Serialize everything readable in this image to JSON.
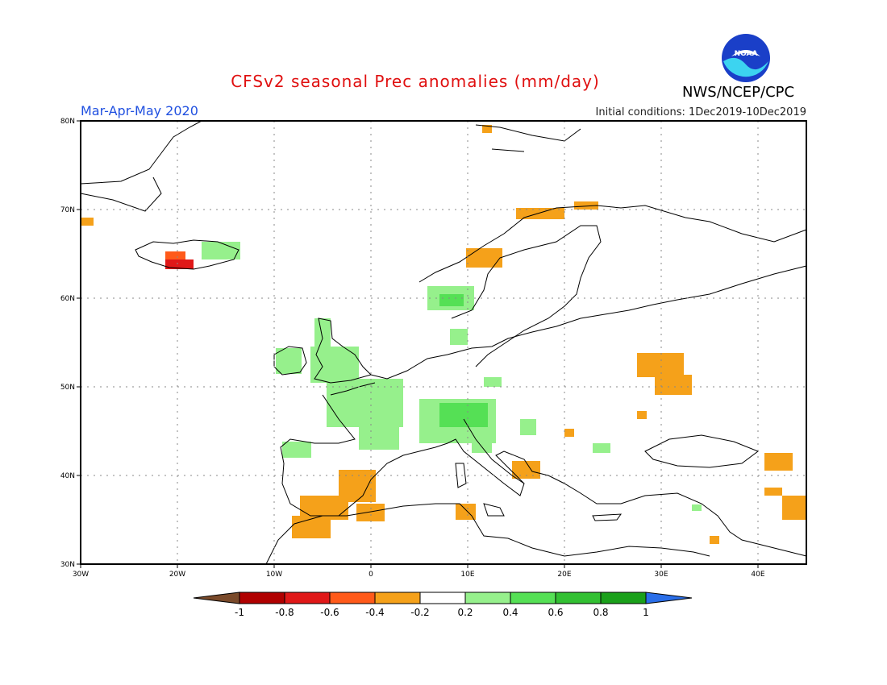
{
  "header": {
    "title": "CFSv2 seasonal Prec anomalies (mm/day)",
    "period": "Mar-Apr-May 2020",
    "initial_conditions": "Initial conditions: 1Dec2019-10Dec2019",
    "agency": "NWS/NCEP/CPC",
    "logo_text": "NOAA"
  },
  "map": {
    "lon_range": [
      -30,
      45
    ],
    "lat_range": [
      30,
      80
    ],
    "lon_ticks": [
      "30W",
      "20W",
      "10W",
      "0",
      "10E",
      "20E",
      "30E",
      "40E"
    ],
    "lat_ticks": [
      "30N",
      "40N",
      "50N",
      "60N",
      "70N",
      "80N"
    ],
    "grid": true
  },
  "colorbar": {
    "labels": [
      "-1",
      "-0.8",
      "-0.6",
      "-0.4",
      "-0.2",
      "0.2",
      "0.4",
      "0.6",
      "0.8",
      "1"
    ],
    "colors": [
      "#7a4a2a",
      "#b00000",
      "#e01818",
      "#ff5a1a",
      "#f5a11a",
      "#ffffff",
      "#96f08c",
      "#55e055",
      "#32c032",
      "#1aa01a",
      "#2a6ee8"
    ]
  },
  "colors": {
    "dry_moderate": "#f5a11a",
    "dry_strong": "#ff4a1a",
    "dry_very_strong": "#e01818",
    "wet_light": "#96f08c",
    "wet_moderate": "#55e055"
  }
}
